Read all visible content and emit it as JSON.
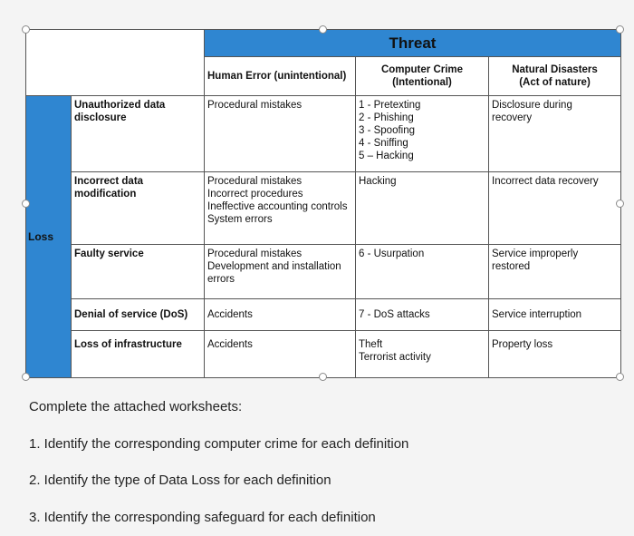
{
  "table": {
    "threat_label": "Threat",
    "loss_label": "Loss",
    "columns": [
      "Human Error (unintentional)",
      "Computer Crime\n(Intentional)",
      "Natural Disasters\n(Act of nature)"
    ],
    "rows": [
      {
        "label": "Unauthorized data\ndisclosure",
        "human": "Procedural mistakes",
        "crime": "1 - Pretexting\n2 - Phishing\n3 - Spoofing\n4 - Sniffing\n5 – Hacking",
        "natural": "Disclosure during\nrecovery"
      },
      {
        "label": "Incorrect data\nmodification",
        "human": "Procedural mistakes\nIncorrect procedures\nIneffective accounting controls\nSystem errors",
        "crime": "Hacking",
        "natural": "Incorrect data recovery"
      },
      {
        "label": "Faulty service",
        "human": "Procedural mistakes\nDevelopment and installation\nerrors",
        "crime": "6 - Usurpation",
        "natural": "Service improperly\nrestored"
      },
      {
        "label": "Denial of service (DoS)",
        "human": "Accidents",
        "crime": "7 - DoS attacks",
        "natural": "Service interruption"
      },
      {
        "label": "Loss of infrastructure",
        "human": "Accidents",
        "crime": "Theft\nTerrorist activity",
        "natural": "Property loss"
      }
    ]
  },
  "instructions": {
    "heading": "Complete the attached worksheets:",
    "items": [
      "1. Identify the corresponding computer crime for each definition",
      "2. Identify the type of Data Loss for each definition",
      "3. Identify the corresponding safeguard for each definition"
    ]
  }
}
